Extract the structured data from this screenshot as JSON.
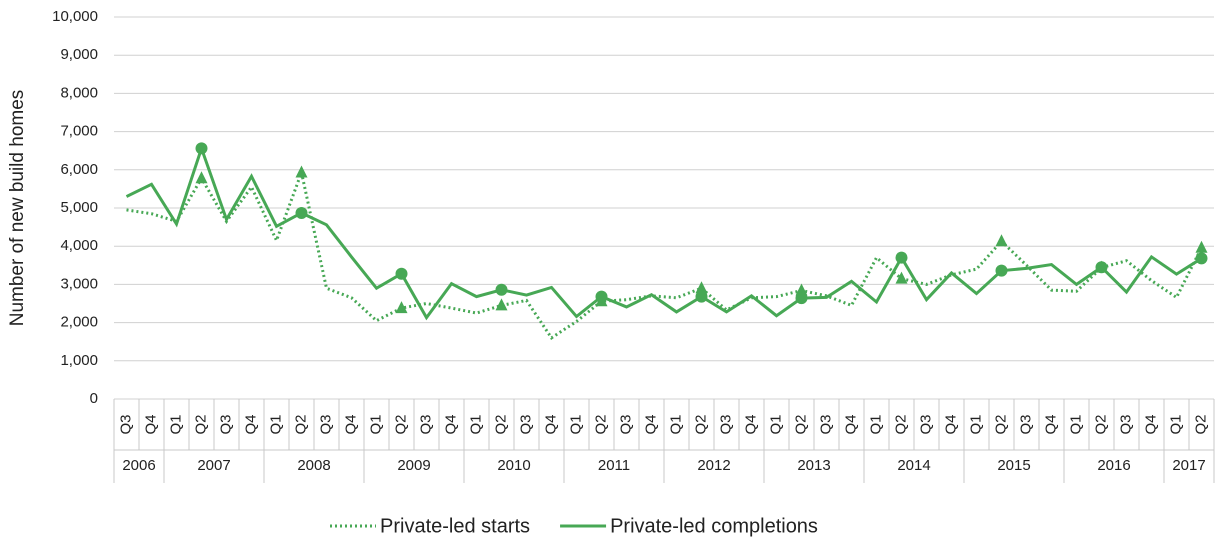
{
  "chart_data": {
    "type": "line",
    "y_label": "Number of new build homes",
    "categories": [
      "Q3",
      "Q4",
      "Q1",
      "Q2",
      "Q3",
      "Q4",
      "Q1",
      "Q2",
      "Q3",
      "Q4",
      "Q1",
      "Q2",
      "Q3",
      "Q4",
      "Q1",
      "Q2",
      "Q3",
      "Q4",
      "Q1",
      "Q2",
      "Q3",
      "Q4",
      "Q1",
      "Q2",
      "Q3",
      "Q4",
      "Q1",
      "Q2",
      "Q3",
      "Q4",
      "Q1",
      "Q2",
      "Q3",
      "Q4",
      "Q1",
      "Q2",
      "Q3",
      "Q4",
      "Q1",
      "Q2",
      "Q3",
      "Q4",
      "Q1",
      "Q2"
    ],
    "x_groups": [
      {
        "label": "2006",
        "count": 2
      },
      {
        "label": "2007",
        "count": 4
      },
      {
        "label": "2008",
        "count": 4
      },
      {
        "label": "2009",
        "count": 4
      },
      {
        "label": "2010",
        "count": 4
      },
      {
        "label": "2011",
        "count": 4
      },
      {
        "label": "2012",
        "count": 4
      },
      {
        "label": "2013",
        "count": 4
      },
      {
        "label": "2014",
        "count": 4
      },
      {
        "label": "2015",
        "count": 4
      },
      {
        "label": "2016",
        "count": 4
      },
      {
        "label": "2017",
        "count": 2
      }
    ],
    "series": [
      {
        "name": "Private-led starts",
        "color": "#47a855",
        "dash": "dotted",
        "marker": "triangle",
        "values": [
          4950,
          4850,
          4650,
          5780,
          4650,
          5550,
          4150,
          5930,
          2900,
          2650,
          2050,
          2380,
          2500,
          2380,
          2250,
          2450,
          2580,
          1600,
          2030,
          2560,
          2600,
          2700,
          2650,
          2900,
          2330,
          2650,
          2680,
          2840,
          2700,
          2450,
          3700,
          3150,
          3000,
          3250,
          3400,
          4130,
          3500,
          2850,
          2820,
          3440,
          3620,
          3100,
          2660,
          3960
        ]
      },
      {
        "name": "Private-led completions",
        "color": "#47a855",
        "dash": "solid",
        "marker": "circle",
        "values": [
          5300,
          5620,
          4580,
          6560,
          4700,
          5830,
          4520,
          4870,
          4560,
          3720,
          2900,
          3280,
          2130,
          3020,
          2680,
          2860,
          2720,
          2920,
          2160,
          2680,
          2410,
          2730,
          2280,
          2680,
          2280,
          2700,
          2180,
          2640,
          2660,
          3080,
          2540,
          3700,
          2600,
          3300,
          2760,
          3360,
          3420,
          3520,
          3000,
          3450,
          2800,
          3720,
          3270,
          3680
        ]
      }
    ],
    "ylim": [
      0,
      10000
    ],
    "yticks": [
      0,
      {
        "value": 1000,
        "label": "1,000"
      },
      {
        "value": 2000,
        "label": "2,000"
      },
      {
        "value": 3000,
        "label": "3,000"
      },
      {
        "value": 4000,
        "label": "4,000"
      },
      {
        "value": 5000,
        "label": "5,000"
      },
      {
        "value": 6000,
        "label": "6,000"
      },
      {
        "value": 7000,
        "label": "7,000"
      },
      {
        "value": 8000,
        "label": "8,000"
      },
      {
        "value": 9000,
        "label": "9,000"
      },
      {
        "value": 10000,
        "label": "10,000"
      }
    ],
    "grid": true,
    "legend": "bottom"
  }
}
